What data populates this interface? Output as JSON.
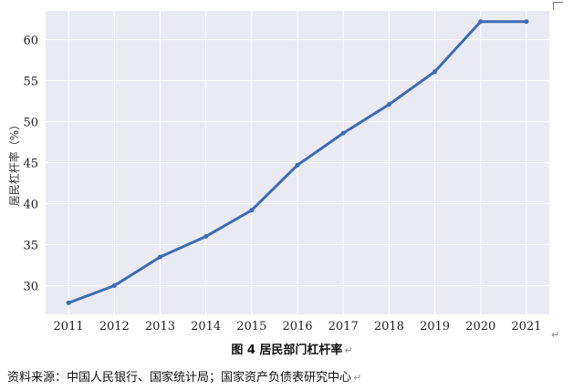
{
  "chart_data": {
    "type": "line",
    "x": [
      "2011",
      "2012",
      "2013",
      "2014",
      "2015",
      "2016",
      "2017",
      "2018",
      "2019",
      "2020",
      "2021"
    ],
    "series": [
      {
        "values": [
          27.9,
          30.0,
          33.5,
          36.0,
          39.2,
          44.7,
          48.6,
          52.1,
          56.1,
          62.2,
          62.2
        ]
      }
    ],
    "title": "",
    "xlabel": "",
    "ylabel": "居民杠杆率（%）",
    "ylim": [
      26.5,
      63.5
    ],
    "yticks": [
      30,
      35,
      40,
      45,
      50,
      55,
      60
    ],
    "grid": true,
    "line_color": "#3c6bb4",
    "background_color": "#eaeaf2"
  },
  "caption": "图 4  居民部门杠杆率",
  "source": "资料来源：中国人民银行、国家统计局；国家资产负债表研究中心",
  "paragraph_mark": "↵"
}
